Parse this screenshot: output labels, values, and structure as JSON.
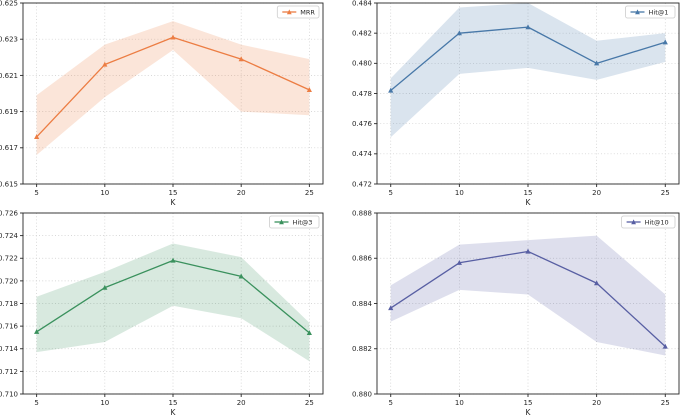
{
  "page": {
    "background_color": "#ffffff",
    "layout": "2x2-subplot-grid"
  },
  "chart_data": [
    {
      "type": "line",
      "title": "",
      "legend_label": "MRR",
      "legend_position": "upper right",
      "line_color": "#ec7d43",
      "band_color": "#ec7d43",
      "marker": "triangle",
      "grid": true,
      "xlabel": "K",
      "ylabel": "",
      "x": [
        5,
        10,
        15,
        20,
        25
      ],
      "x_ticks": [
        "5",
        "10",
        "15",
        "20",
        "25"
      ],
      "y_ticks": [
        "0.615",
        "0.617",
        "0.619",
        "0.621",
        "0.623",
        "0.625"
      ],
      "ylim": [
        0.615,
        0.625
      ],
      "values": [
        0.6176,
        0.6216,
        0.6231,
        0.6219,
        0.6202
      ],
      "band_lower": [
        0.6166,
        0.6198,
        0.6224,
        0.619,
        0.6188
      ],
      "band_upper": [
        0.6199,
        0.6227,
        0.624,
        0.6227,
        0.6219
      ]
    },
    {
      "type": "line",
      "title": "",
      "legend_label": "Hit@1",
      "legend_position": "upper right",
      "line_color": "#4878a8",
      "band_color": "#4878a8",
      "marker": "triangle",
      "grid": true,
      "xlabel": "K",
      "ylabel": "",
      "x": [
        5,
        10,
        15,
        20,
        25
      ],
      "x_ticks": [
        "5",
        "10",
        "15",
        "20",
        "25"
      ],
      "y_ticks": [
        "0.472",
        "0.474",
        "0.476",
        "0.478",
        "0.480",
        "0.482",
        "0.484"
      ],
      "ylim": [
        0.472,
        0.484
      ],
      "values": [
        0.4782,
        0.482,
        0.4824,
        0.48,
        0.4814
      ],
      "band_lower": [
        0.4751,
        0.4793,
        0.4797,
        0.4789,
        0.4801
      ],
      "band_upper": [
        0.479,
        0.4837,
        0.484,
        0.4815,
        0.482
      ]
    },
    {
      "type": "line",
      "title": "",
      "legend_label": "Hit@3",
      "legend_position": "upper right",
      "line_color": "#3a915d",
      "band_color": "#3a915d",
      "marker": "triangle",
      "grid": true,
      "xlabel": "K",
      "ylabel": "",
      "x": [
        5,
        10,
        15,
        20,
        25
      ],
      "x_ticks": [
        "5",
        "10",
        "15",
        "20",
        "25"
      ],
      "y_ticks": [
        "0.710",
        "0.712",
        "0.714",
        "0.716",
        "0.718",
        "0.720",
        "0.722",
        "0.724",
        "0.726"
      ],
      "ylim": [
        0.71,
        0.726
      ],
      "values": [
        0.7155,
        0.7194,
        0.7218,
        0.7204,
        0.7154
      ],
      "band_lower": [
        0.7137,
        0.7146,
        0.7178,
        0.7167,
        0.7129
      ],
      "band_upper": [
        0.7186,
        0.7208,
        0.7233,
        0.7221,
        0.7163
      ]
    },
    {
      "type": "line",
      "title": "",
      "legend_label": "Hit@10",
      "legend_position": "upper right",
      "line_color": "#585fa3",
      "band_color": "#585fa3",
      "marker": "triangle",
      "grid": true,
      "xlabel": "K",
      "ylabel": "",
      "x": [
        5,
        10,
        15,
        20,
        25
      ],
      "x_ticks": [
        "5",
        "10",
        "15",
        "20",
        "25"
      ],
      "y_ticks": [
        "0.880",
        "0.882",
        "0.884",
        "0.886",
        "0.888"
      ],
      "ylim": [
        0.88,
        0.888
      ],
      "values": [
        0.8838,
        0.8858,
        0.8863,
        0.8849,
        0.8821
      ],
      "band_lower": [
        0.8832,
        0.8846,
        0.8844,
        0.8823,
        0.8817
      ],
      "band_upper": [
        0.8848,
        0.8866,
        0.8868,
        0.887,
        0.8844
      ]
    }
  ]
}
